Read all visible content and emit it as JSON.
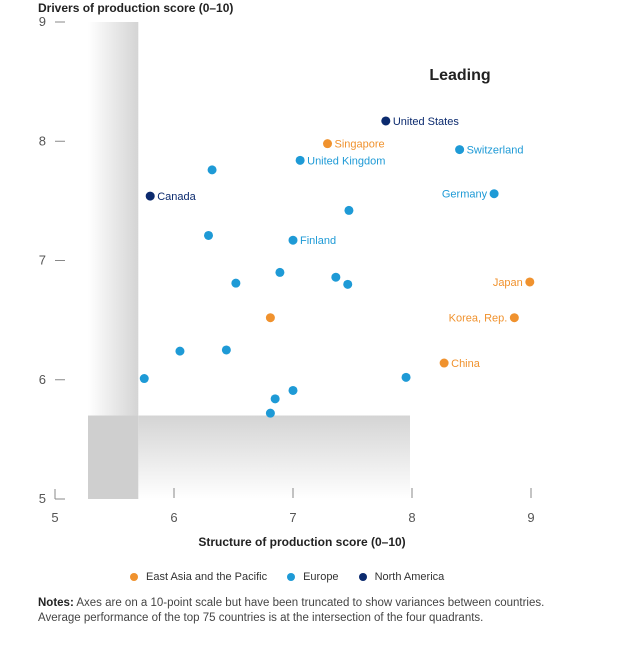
{
  "colors": {
    "east_asia": "#f0922e",
    "europe": "#1e9ad6",
    "north_america": "#0b2a6e"
  },
  "notes": {
    "label": "Notes:",
    "text": "Axes are on a 10-point scale but have been truncated to show variances between countries. Average performance of the top 75 countries is at the intersection of the four quadrants."
  },
  "chart_data": {
    "type": "scatter",
    "title": "",
    "xlabel": "Structure of production score (0–10)",
    "ylabel": "Drivers of production score (0–10)",
    "xlim": [
      5,
      9
    ],
    "ylim": [
      5,
      9
    ],
    "x_ticks": [
      "5",
      "6",
      "7",
      "8",
      "9"
    ],
    "y_ticks": [
      "5",
      "6",
      "7",
      "8",
      "9"
    ],
    "average_intersection": {
      "x": 5.7,
      "y": 5.7
    },
    "quadrant_label": "Leading",
    "legend": [
      {
        "key": "east_asia",
        "label": "East Asia and the Pacific"
      },
      {
        "key": "europe",
        "label": "Europe"
      },
      {
        "key": "north_america",
        "label": "North America"
      }
    ],
    "series": [
      {
        "x": 7.78,
        "y": 8.17,
        "group": "north_america",
        "label": "United States",
        "anchor": "right"
      },
      {
        "x": 5.8,
        "y": 7.54,
        "group": "north_america",
        "label": "Canada",
        "anchor": "right"
      },
      {
        "x": 7.29,
        "y": 7.98,
        "group": "east_asia",
        "label": "Singapore",
        "anchor": "right"
      },
      {
        "x": 8.99,
        "y": 6.82,
        "group": "east_asia",
        "label": "Japan",
        "anchor": "left"
      },
      {
        "x": 8.86,
        "y": 6.52,
        "group": "east_asia",
        "label": "Korea, Rep.",
        "anchor": "left"
      },
      {
        "x": 8.27,
        "y": 6.14,
        "group": "east_asia",
        "label": "China",
        "anchor": "right"
      },
      {
        "x": 6.81,
        "y": 6.52,
        "group": "east_asia",
        "label": ""
      },
      {
        "x": 8.4,
        "y": 7.93,
        "group": "europe",
        "label": "Switzerland",
        "anchor": "right"
      },
      {
        "x": 7.06,
        "y": 7.84,
        "group": "europe",
        "label": "United Kingdom",
        "anchor": "right"
      },
      {
        "x": 8.69,
        "y": 7.56,
        "group": "europe",
        "label": "Germany",
        "anchor": "left"
      },
      {
        "x": 7.0,
        "y": 7.17,
        "group": "europe",
        "label": "Finland",
        "anchor": "right"
      },
      {
        "x": 6.32,
        "y": 7.76,
        "group": "europe",
        "label": ""
      },
      {
        "x": 7.47,
        "y": 7.42,
        "group": "europe",
        "label": ""
      },
      {
        "x": 6.29,
        "y": 7.21,
        "group": "europe",
        "label": ""
      },
      {
        "x": 6.89,
        "y": 6.9,
        "group": "europe",
        "label": ""
      },
      {
        "x": 7.36,
        "y": 6.86,
        "group": "europe",
        "label": ""
      },
      {
        "x": 6.52,
        "y": 6.81,
        "group": "europe",
        "label": ""
      },
      {
        "x": 7.46,
        "y": 6.8,
        "group": "europe",
        "label": ""
      },
      {
        "x": 6.05,
        "y": 6.24,
        "group": "europe",
        "label": ""
      },
      {
        "x": 6.44,
        "y": 6.25,
        "group": "europe",
        "label": ""
      },
      {
        "x": 5.75,
        "y": 6.01,
        "group": "europe",
        "label": ""
      },
      {
        "x": 7.95,
        "y": 6.02,
        "group": "europe",
        "label": ""
      },
      {
        "x": 7.0,
        "y": 5.91,
        "group": "europe",
        "label": ""
      },
      {
        "x": 6.85,
        "y": 5.84,
        "group": "europe",
        "label": ""
      },
      {
        "x": 6.81,
        "y": 5.72,
        "group": "europe",
        "label": ""
      }
    ]
  }
}
